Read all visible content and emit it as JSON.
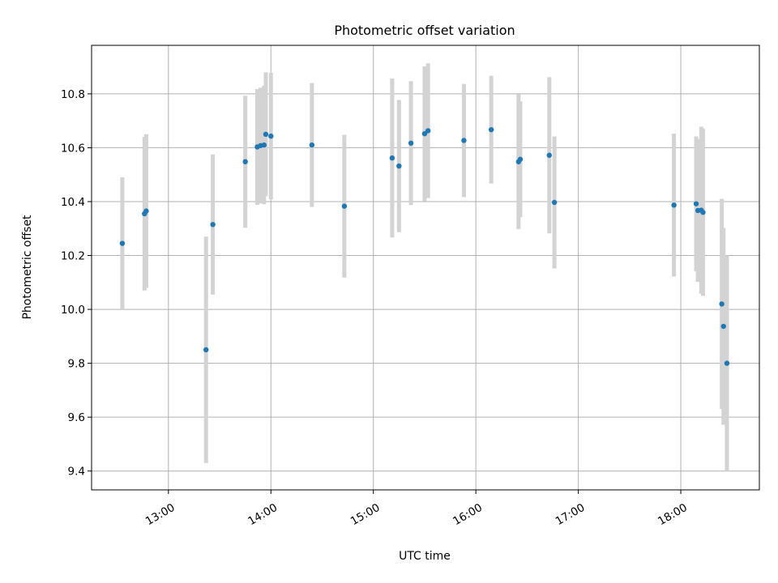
{
  "chart_data": {
    "type": "scatter",
    "title": "Photometric offset variation",
    "xlabel": "UTC time",
    "ylabel": "Photometric offset",
    "x_ticks": [
      "13:00",
      "14:00",
      "15:00",
      "16:00",
      "17:00",
      "18:00"
    ],
    "y_ticks": [
      "9.4",
      "9.6",
      "9.8",
      "10.0",
      "10.2",
      "10.4",
      "10.6",
      "10.8"
    ],
    "xlim": [
      "12:15",
      "18:46"
    ],
    "ylim": [
      9.33,
      10.98
    ],
    "grid": true,
    "errorbar_color": "#d3d3d3",
    "point_color": "#1f77b4",
    "points": [
      {
        "time": "12:33",
        "y": 10.245,
        "err": 0.245
      },
      {
        "time": "12:46",
        "y": 10.355,
        "err": 0.285
      },
      {
        "time": "12:47",
        "y": 10.365,
        "err": 0.285
      },
      {
        "time": "13:22",
        "y": 9.85,
        "err": 0.42
      },
      {
        "time": "13:26",
        "y": 10.315,
        "err": 0.26
      },
      {
        "time": "13:45",
        "y": 10.548,
        "err": 0.245
      },
      {
        "time": "13:52",
        "y": 10.603,
        "err": 0.215
      },
      {
        "time": "13:54",
        "y": 10.608,
        "err": 0.215
      },
      {
        "time": "13:56",
        "y": 10.61,
        "err": 0.22
      },
      {
        "time": "13:57",
        "y": 10.65,
        "err": 0.23
      },
      {
        "time": "14:00",
        "y": 10.643,
        "err": 0.235
      },
      {
        "time": "14:24",
        "y": 10.61,
        "err": 0.23
      },
      {
        "time": "14:43",
        "y": 10.383,
        "err": 0.265
      },
      {
        "time": "15:11",
        "y": 10.562,
        "err": 0.295
      },
      {
        "time": "15:15",
        "y": 10.532,
        "err": 0.245
      },
      {
        "time": "15:22",
        "y": 10.617,
        "err": 0.23
      },
      {
        "time": "15:30",
        "y": 10.652,
        "err": 0.25
      },
      {
        "time": "15:32",
        "y": 10.663,
        "err": 0.25
      },
      {
        "time": "15:53",
        "y": 10.627,
        "err": 0.21
      },
      {
        "time": "16:09",
        "y": 10.667,
        "err": 0.2
      },
      {
        "time": "16:25",
        "y": 10.548,
        "err": 0.25
      },
      {
        "time": "16:26",
        "y": 10.557,
        "err": 0.215
      },
      {
        "time": "16:43",
        "y": 10.572,
        "err": 0.29
      },
      {
        "time": "16:46",
        "y": 10.397,
        "err": 0.245
      },
      {
        "time": "17:56",
        "y": 10.387,
        "err": 0.265
      },
      {
        "time": "18:09",
        "y": 10.392,
        "err": 0.25
      },
      {
        "time": "18:10",
        "y": 10.367,
        "err": 0.265
      },
      {
        "time": "18:12",
        "y": 10.368,
        "err": 0.31
      },
      {
        "time": "18:13",
        "y": 10.36,
        "err": 0.31
      },
      {
        "time": "18:24",
        "y": 10.02,
        "err": 0.39
      },
      {
        "time": "18:25",
        "y": 9.937,
        "err": 0.365
      },
      {
        "time": "18:27",
        "y": 9.8,
        "err": 0.4
      }
    ]
  }
}
